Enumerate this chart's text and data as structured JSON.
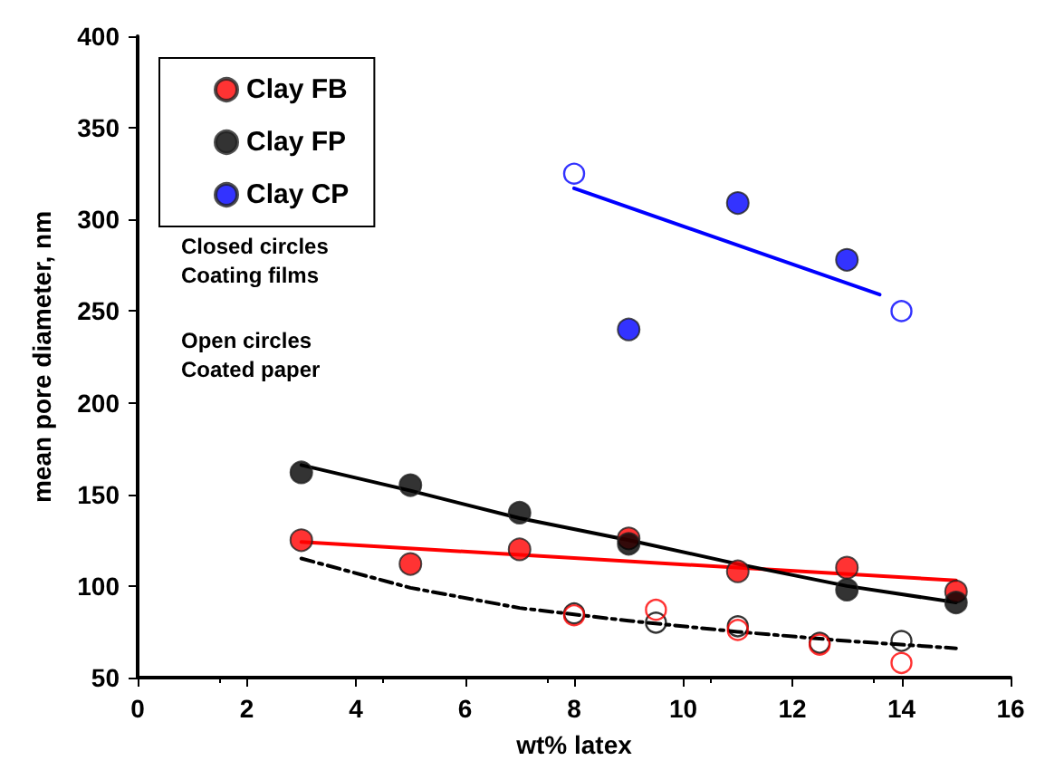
{
  "chart_data": {
    "type": "scatter",
    "xlabel": "wt% latex",
    "ylabel": "mean pore diameter, nm",
    "xlim": [
      0,
      16
    ],
    "xticks": [
      0,
      2,
      4,
      6,
      8,
      10,
      12,
      14,
      16
    ],
    "ylim": [
      50,
      400
    ],
    "yticks": [
      50,
      100,
      150,
      200,
      250,
      300,
      350,
      400
    ],
    "grid": false,
    "legend": "top left",
    "marker": "circle",
    "annotations": [
      "Closed circles\nCoating films",
      "Open circles\nCoated paper"
    ],
    "series": [
      {
        "name": "Clay FB",
        "color": "#ff0000",
        "x": [
          3,
          5,
          7,
          9,
          11,
          13,
          15
        ],
        "values": [
          125,
          112,
          120,
          126,
          108,
          110,
          97
        ]
      },
      {
        "name": "Clay FP",
        "color": "#000000",
        "x": [
          3,
          5,
          7,
          9,
          13,
          15
        ],
        "values": [
          162,
          155,
          140,
          123,
          98,
          91
        ]
      },
      {
        "name": "Clay CP",
        "color": "#0000ff",
        "x": [
          9,
          11,
          13
        ],
        "values": [
          240,
          309,
          278
        ]
      },
      {
        "color": "#0000ff",
        "x": [
          8,
          14
        ],
        "values": [
          325,
          250
        ]
      },
      {
        "color": "#000000",
        "x": [
          8,
          9.5,
          11,
          12.5,
          14
        ],
        "values": [
          85,
          80,
          78,
          69,
          70
        ]
      },
      {
        "color": "#ff0000",
        "x": [
          8,
          9.5,
          11,
          12.5,
          14
        ],
        "values": [
          84,
          87,
          76,
          68,
          58
        ]
      },
      {
        "type": "line",
        "marker": "none",
        "color": "#ff0000",
        "line_style": "solid",
        "x": [
          3,
          15
        ],
        "values": [
          124,
          103
        ]
      },
      {
        "type": "line",
        "marker": "none",
        "color": "#000000",
        "line_style": "solid",
        "x": [
          3,
          5,
          7,
          9,
          11,
          13,
          15
        ],
        "values": [
          166,
          152,
          137,
          125,
          112,
          100,
          91
        ]
      },
      {
        "type": "line",
        "marker": "none",
        "color": "#0000ff",
        "line_style": "solid",
        "x": [
          8,
          13.6
        ],
        "values": [
          317,
          259
        ]
      },
      {
        "type": "line",
        "marker": "none",
        "color": "#000000",
        "line_style": "dashed",
        "x": [
          3,
          5,
          7,
          9,
          11,
          13,
          15
        ],
        "values": [
          115,
          99,
          88,
          81,
          75,
          70,
          66
        ]
      }
    ]
  }
}
